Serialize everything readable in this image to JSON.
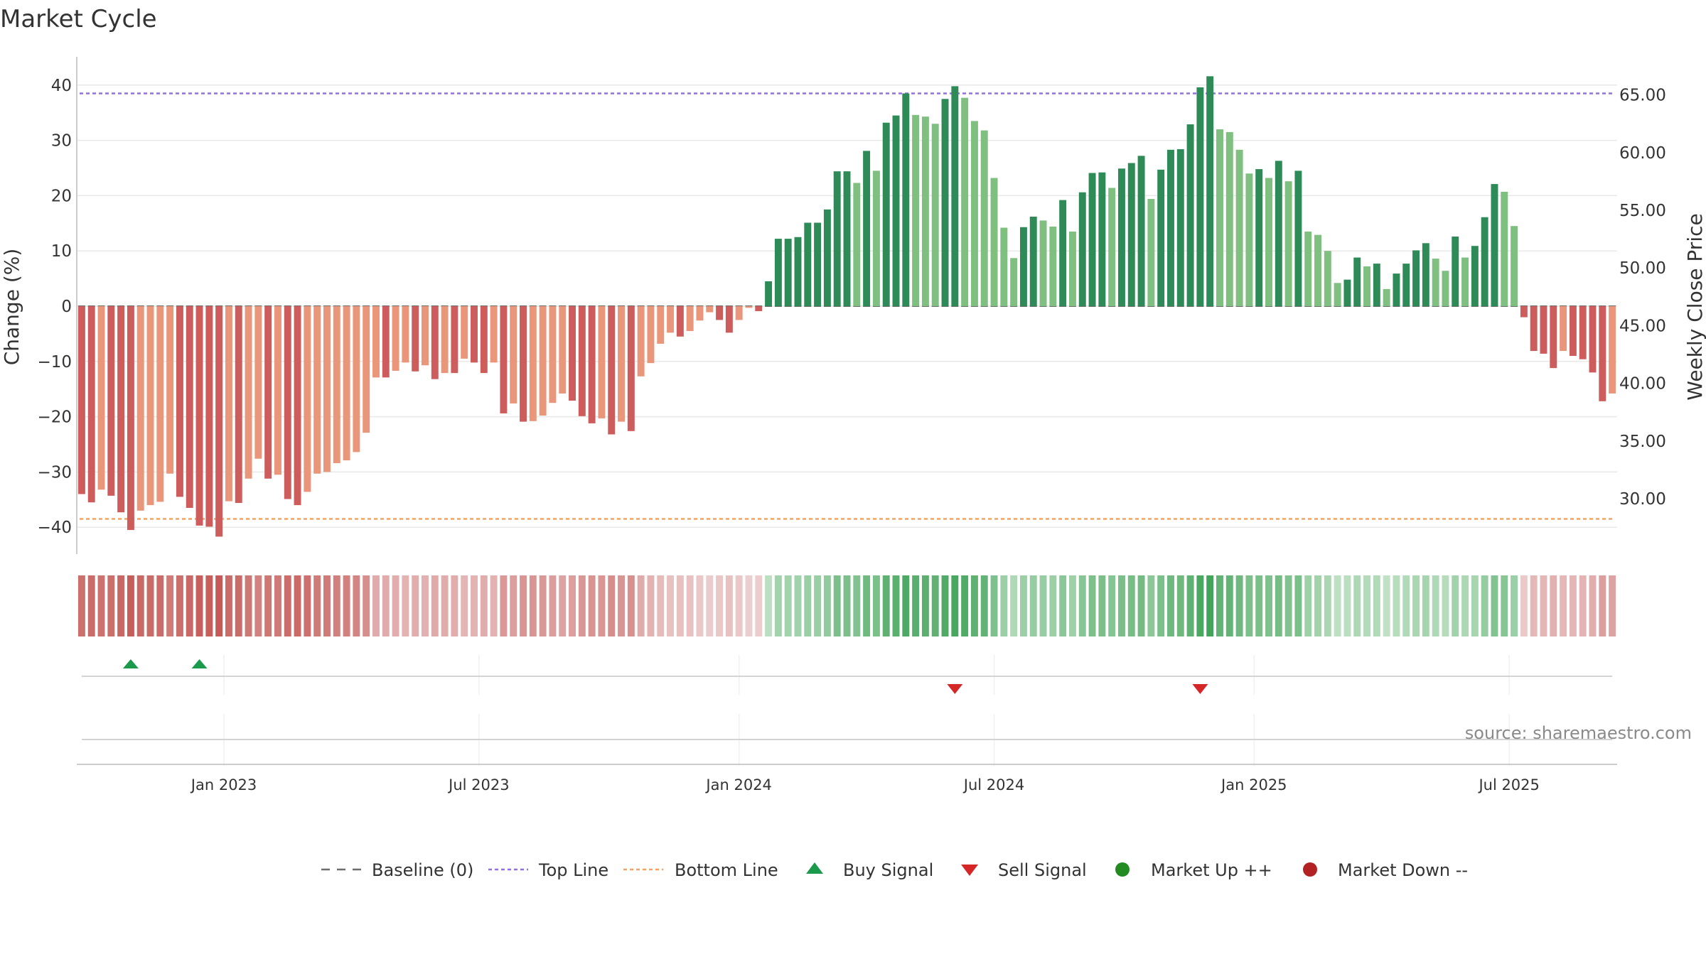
{
  "chart_data": {
    "type": "bar",
    "title": "Market Cycle",
    "ylabel": "Change (%)",
    "y2label": "Weekly Close Price",
    "ylim": [
      -45,
      45
    ],
    "yticks": [
      40,
      30,
      20,
      10,
      0,
      -10,
      -20,
      -30,
      -40
    ],
    "ytick_labels": [
      "40",
      "30",
      "20",
      "10",
      "0",
      "−10",
      "−20",
      "−30",
      "−40"
    ],
    "y2ticks": [
      "65.00",
      "60.00",
      "55.00",
      "50.00",
      "45.00",
      "40.00",
      "35.00",
      "30.00"
    ],
    "y2tick_values": [
      65,
      60,
      55,
      50,
      45,
      40,
      35,
      30
    ],
    "y2lim": [
      25.2,
      68.3
    ],
    "top_line": 38.5,
    "bottom_line": -38.5,
    "baseline": 0,
    "x_tick_labels": [
      "Jan 2023",
      "Jul 2023",
      "Jan 2024",
      "Jul 2024",
      "Jan 2025",
      "Jul 2025"
    ],
    "x_tick_index": [
      15,
      41,
      67.5,
      93.5,
      120,
      146
    ],
    "values": [
      -34,
      -35.5,
      -33.2,
      -34.3,
      -37.3,
      -40.5,
      -37,
      -36,
      -35.4,
      -30.3,
      -34.5,
      -36.5,
      -39.7,
      -39.9,
      -41.7,
      -35.3,
      -35.6,
      -31.2,
      -27.6,
      -31.2,
      -30.5,
      -34.9,
      -36,
      -33.6,
      -30.3,
      -30,
      -28.4,
      -27.9,
      -26.4,
      -22.9,
      -12.9,
      -12.9,
      -11.7,
      -10.2,
      -11.8,
      -10.7,
      -13.2,
      -12.1,
      -12.1,
      -9.5,
      -10.2,
      -12.1,
      -10.2,
      -19.4,
      -17.6,
      -20.9,
      -20.8,
      -19.8,
      -17.5,
      -15.8,
      -17.1,
      -19.9,
      -21.2,
      -20.3,
      -23.2,
      -20.9,
      -22.6,
      -12.7,
      -10.3,
      -6.8,
      -4.8,
      -5.5,
      -4.5,
      -2.6,
      -1.1,
      -2.5,
      -4.8,
      -2.5,
      -0.3,
      -0.9,
      4.5,
      12.2,
      12.2,
      12.5,
      15.1,
      15.1,
      17.5,
      24.4,
      24.4,
      22.3,
      28.1,
      24.5,
      33.2,
      34.5,
      38.5,
      34.6,
      34.3,
      33,
      37.5,
      39.8,
      37.7,
      33.5,
      31.8,
      23.2,
      14.2,
      8.7,
      14.3,
      16.2,
      15.5,
      14.4,
      19.2,
      13.5,
      20.6,
      24.1,
      24.2,
      21.4,
      24.9,
      25.9,
      27.2,
      19.4,
      24.7,
      28.3,
      28.4,
      32.9,
      39.6,
      41.6,
      32,
      31.5,
      28.3,
      24,
      24.8,
      23.2,
      26.3,
      22.6,
      24.5,
      13.5,
      12.9,
      10,
      4.2,
      4.8,
      8.8,
      7.2,
      7.7,
      3.1,
      5.9,
      7.7,
      10.1,
      11.4,
      8.6,
      6.4,
      12.6,
      8.8,
      10.9,
      16.1,
      22.1,
      20.7,
      14.5,
      -2,
      -8.1,
      -8.6,
      -11.2,
      -8.1,
      -9,
      -9.6,
      -12,
      -17.2,
      -15.8
    ],
    "weekly_close": [],
    "signals": [
      {
        "type": "Buy Signal",
        "index": 5
      },
      {
        "type": "Buy Signal",
        "index": 12
      },
      {
        "type": "Sell Signal",
        "index": 89
      },
      {
        "type": "Sell Signal",
        "index": 114
      }
    ],
    "legend": [
      "Baseline (0)",
      "Top Line",
      "Bottom Line",
      "Buy Signal",
      "Sell Signal",
      "Market Up ++",
      "Market Down --"
    ],
    "legend_position": "bottom-center"
  },
  "source": "source: sharemaestro.com",
  "colors": {
    "up_strong": "#2e8b57",
    "up_light": "#7fbf7f",
    "down_strong": "#cd5c5c",
    "down_light": "#e9967a",
    "top_line": "#9370db",
    "bottom_line": "#f4a460",
    "baseline": "#6e6e6e",
    "buy": "#1a9a4a",
    "sell": "#d62728",
    "market_up": "#228b22",
    "market_down": "#b22222",
    "grid": "#e8e8e8",
    "axis": "#cccccc"
  }
}
